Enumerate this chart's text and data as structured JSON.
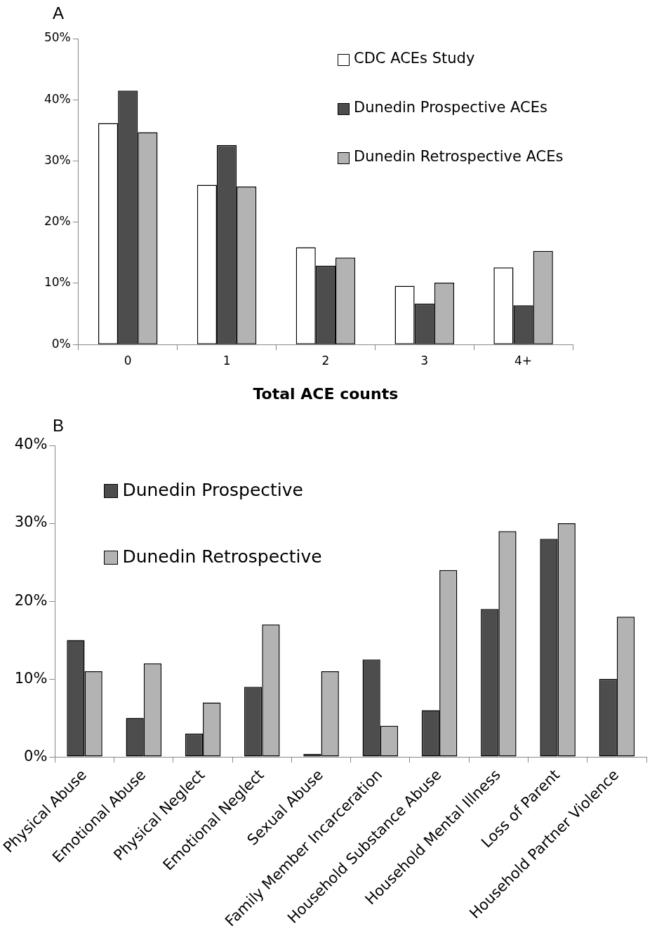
{
  "chart_data": [
    {
      "type": "bar",
      "annotations": [
        "A"
      ],
      "xlabel": "Total ACE counts",
      "categories": [
        "0",
        "1",
        "2",
        "3",
        "4+"
      ],
      "series": [
        {
          "name": "CDC ACEs Study",
          "color": "#ffffff",
          "values": [
            36.2,
            26.1,
            15.9,
            9.6,
            12.6
          ]
        },
        {
          "name": "Dunedin Prospective ACEs",
          "color": "#4d4d4d",
          "values": [
            41.5,
            32.6,
            12.9,
            6.7,
            6.4
          ]
        },
        {
          "name": "Dunedin Retrospective ACEs",
          "color": "#b3b3b3",
          "values": [
            34.7,
            25.8,
            14.2,
            10.1,
            15.3
          ]
        }
      ],
      "ylim": [
        0,
        50
      ],
      "yticks": [
        {
          "value": 0,
          "label": "0%"
        },
        {
          "value": 10,
          "label": "10%"
        },
        {
          "value": 20,
          "label": "20%"
        },
        {
          "value": 30,
          "label": "30%"
        },
        {
          "value": 40,
          "label": "40%"
        },
        {
          "value": 50,
          "label": "50%"
        }
      ],
      "grid": false,
      "legend": "top right"
    },
    {
      "type": "bar",
      "annotations": [
        "B"
      ],
      "categories": [
        "Physical Abuse",
        "Emotional Abuse",
        "Physical Neglect",
        "Emotional Neglect",
        "Sexual Abuse",
        "Family Member Incarceration",
        "Household Substance Abuse",
        "Household Mental Illness",
        "Loss of Parent",
        "Household Partner Violence"
      ],
      "series": [
        {
          "name": "Dunedin Prospective",
          "color": "#4d4d4d",
          "values": [
            15,
            5,
            3,
            9,
            0.4,
            12.5,
            6,
            19,
            28,
            10
          ]
        },
        {
          "name": "Dunedin Retrospective",
          "color": "#b3b3b3",
          "values": [
            11,
            12,
            7,
            17,
            11,
            4,
            24,
            29,
            30,
            18
          ]
        }
      ],
      "ylim": [
        0,
        40
      ],
      "yticks": [
        {
          "value": 0,
          "label": "0%"
        },
        {
          "value": 10,
          "label": "10%"
        },
        {
          "value": 20,
          "label": "20%"
        },
        {
          "value": 30,
          "label": "30%"
        },
        {
          "value": 40,
          "label": "40%"
        }
      ],
      "grid": false,
      "legend": "top left"
    }
  ]
}
